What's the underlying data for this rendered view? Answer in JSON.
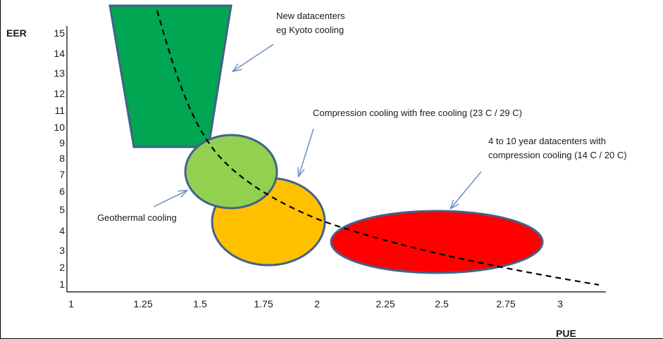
{
  "chart_data": {
    "type": "diagram",
    "xlabel": "PUE",
    "ylabel": "EER",
    "x_ticks": [
      "1",
      "1.25",
      "1.5",
      "1.75",
      "2",
      "2.25",
      "2.5",
      "2.75",
      "3"
    ],
    "y_ticks": [
      "15",
      "14",
      "13",
      "12",
      "11",
      "10",
      "9",
      "8",
      "7",
      "6",
      "5",
      "4",
      "3",
      "2",
      "1"
    ],
    "xlim": [
      1,
      3.2
    ],
    "ylim": [
      1,
      16
    ],
    "curve": {
      "style": "dashed",
      "color": "#000000"
    },
    "regions": [
      {
        "label": "New datacenters eg Kyoto cooling",
        "lines": [
          "New datacenters",
          "eg Kyoto cooling"
        ],
        "shape": "trapezoid",
        "color": "#00a651"
      },
      {
        "label": "Geothermal cooling",
        "lines": [
          "Geothermal cooling"
        ],
        "shape": "ellipse",
        "color": "#92d050"
      },
      {
        "label": "Compression cooling with free cooling (23 C / 29 C)",
        "lines": [
          "Compression cooling with free cooling (23 C / 29 C)"
        ],
        "shape": "ellipse",
        "color": "#ffc000"
      },
      {
        "label": "4 to 10 year datacenters with compression cooling (14 C / 20 C)",
        "lines": [
          "4 to 10 year datacenters with",
          "compression cooling (14 C / 20 C)"
        ],
        "shape": "ellipse",
        "color": "#ff0000"
      }
    ],
    "outline_color": "#41628a",
    "arrow_color": "#6d8fc2"
  }
}
